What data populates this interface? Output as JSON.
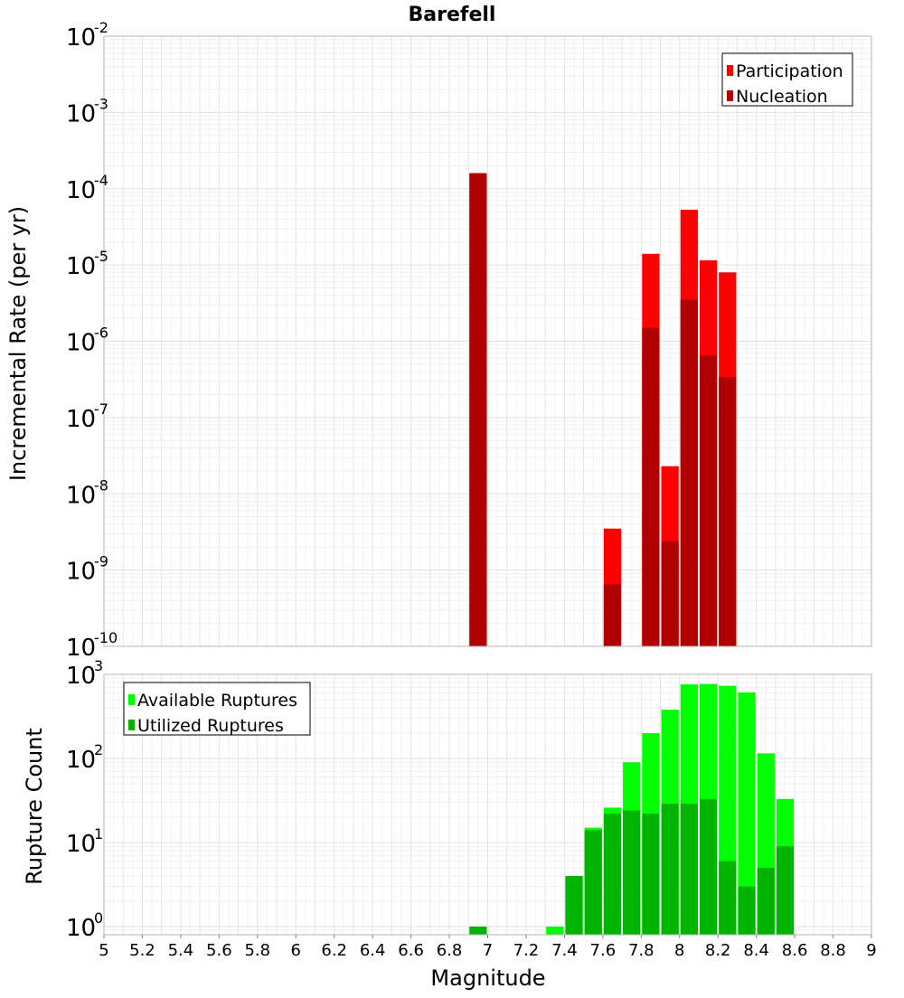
{
  "chart_data": [
    {
      "type": "bar",
      "title": "Barefell",
      "ylabel": "Incremental Rate (per yr)",
      "xlabel": "",
      "xlim": [
        5,
        9
      ],
      "ylim": [
        1e-10,
        0.01
      ],
      "yscale": "log",
      "y_ticks": [
        {
          "base": "10",
          "exp": "-10"
        },
        {
          "base": "10",
          "exp": "-9"
        },
        {
          "base": "10",
          "exp": "-8"
        },
        {
          "base": "10",
          "exp": "-7"
        },
        {
          "base": "10",
          "exp": "-6"
        },
        {
          "base": "10",
          "exp": "-5"
        },
        {
          "base": "10",
          "exp": "-4"
        },
        {
          "base": "10",
          "exp": "-3"
        },
        {
          "base": "10",
          "exp": "-2"
        }
      ],
      "grid": true,
      "legend": {
        "placement": "top-right",
        "entries": [
          "Participation",
          "Nucleation"
        ]
      },
      "bar_width": 0.1,
      "series": [
        {
          "name": "Participation",
          "color": "#ff0000",
          "points": [
            [
              6.95,
              0.00016
            ],
            [
              7.65,
              3.5e-09
            ],
            [
              7.85,
              1.4e-05
            ],
            [
              7.95,
              2.3e-08
            ],
            [
              8.05,
              5.3e-05
            ],
            [
              8.15,
              1.15e-05
            ],
            [
              8.25,
              8e-06
            ]
          ]
        },
        {
          "name": "Nucleation",
          "color": "#b00000",
          "points": [
            [
              6.95,
              0.00016
            ],
            [
              7.65,
              6.5e-10
            ],
            [
              7.85,
              1.5e-06
            ],
            [
              7.95,
              2.4e-09
            ],
            [
              8.05,
              3.5e-06
            ],
            [
              8.15,
              6.5e-07
            ],
            [
              8.25,
              3.4e-07
            ]
          ]
        }
      ]
    },
    {
      "type": "bar",
      "title": "",
      "ylabel": "Rupture Count",
      "xlabel": "Magnitude",
      "xlim": [
        5,
        9
      ],
      "ylim": [
        0.8,
        1000
      ],
      "yscale": "log",
      "y_ticks": [
        {
          "base": "10",
          "exp": "0"
        },
        {
          "base": "10",
          "exp": "1"
        },
        {
          "base": "10",
          "exp": "2"
        },
        {
          "base": "10",
          "exp": "3"
        }
      ],
      "x_ticks": [
        "5",
        "5.2",
        "5.4",
        "5.6",
        "5.8",
        "6",
        "6.2",
        "6.4",
        "6.6",
        "6.8",
        "7",
        "7.2",
        "7.4",
        "7.6",
        "7.8",
        "8",
        "8.2",
        "8.4",
        "8.6",
        "8.8",
        "9"
      ],
      "grid": true,
      "legend": {
        "placement": "top-left",
        "entries": [
          "Available Ruptures",
          "Utilized Ruptures"
        ]
      },
      "bar_width": 0.1,
      "series": [
        {
          "name": "Available Ruptures",
          "color": "#00ff00",
          "points": [
            [
              6.95,
              1
            ],
            [
              7.35,
              1
            ],
            [
              7.45,
              4
            ],
            [
              7.55,
              15
            ],
            [
              7.65,
              26
            ],
            [
              7.75,
              90
            ],
            [
              7.85,
              200
            ],
            [
              7.95,
              380
            ],
            [
              8.05,
              760
            ],
            [
              8.15,
              770
            ],
            [
              8.25,
              730
            ],
            [
              8.35,
              610
            ],
            [
              8.45,
              115
            ],
            [
              8.55,
              33
            ]
          ]
        },
        {
          "name": "Utilized Ruptures",
          "color": "#00b400",
          "points": [
            [
              6.95,
              1
            ],
            [
              7.45,
              4
            ],
            [
              7.55,
              14
            ],
            [
              7.65,
              22
            ],
            [
              7.75,
              24
            ],
            [
              7.85,
              22
            ],
            [
              7.95,
              29
            ],
            [
              8.05,
              29
            ],
            [
              8.15,
              33
            ],
            [
              8.25,
              6
            ],
            [
              8.35,
              3
            ],
            [
              8.45,
              5
            ],
            [
              8.55,
              9
            ]
          ]
        }
      ]
    }
  ]
}
